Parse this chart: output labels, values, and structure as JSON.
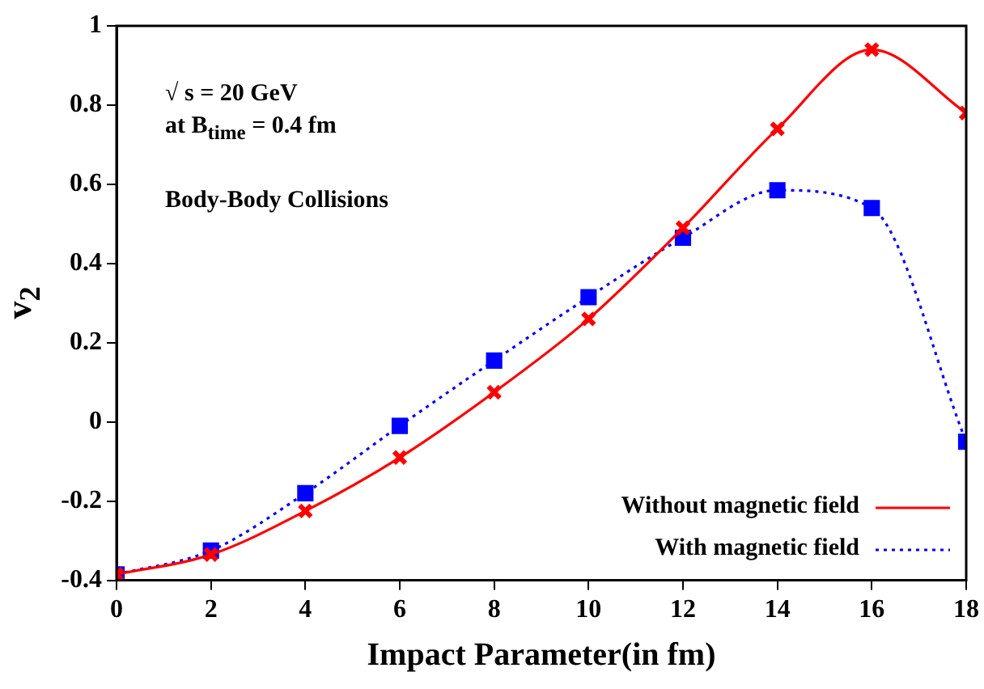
{
  "chart_data": {
    "type": "line",
    "xlabel": "Impact Parameter(in fm)",
    "ylabel": "v$_{2}$",
    "annotations": [
      "√ s = 20 GeV",
      "at B$_{time}$ = 0.4 fm",
      "Body-Body Collisions"
    ],
    "x": [
      0,
      2,
      4,
      6,
      8,
      10,
      12,
      14,
      16,
      18
    ],
    "series": [
      {
        "name": "Without magnetic field",
        "color": "#ff0000",
        "marker": "cross",
        "line_style": "solid",
        "values": [
          -0.385,
          -0.335,
          -0.225,
          -0.09,
          0.075,
          0.26,
          0.49,
          0.74,
          0.94,
          0.78
        ]
      },
      {
        "name": "With magnetic field",
        "color": "#0000ff",
        "marker": "square",
        "line_style": "dotted",
        "values": [
          -0.385,
          -0.325,
          -0.18,
          -0.01,
          0.155,
          0.315,
          0.465,
          0.585,
          0.54,
          -0.05
        ]
      }
    ],
    "xlim": [
      0,
      18
    ],
    "xticks": [
      0,
      2,
      4,
      6,
      8,
      10,
      12,
      14,
      16,
      18
    ],
    "ylim": [
      -0.4,
      1
    ],
    "yticks": [
      -0.4,
      -0.2,
      0,
      0.2,
      0.4,
      0.6,
      0.8,
      1
    ],
    "grid": false,
    "legend": "bottom right"
  }
}
